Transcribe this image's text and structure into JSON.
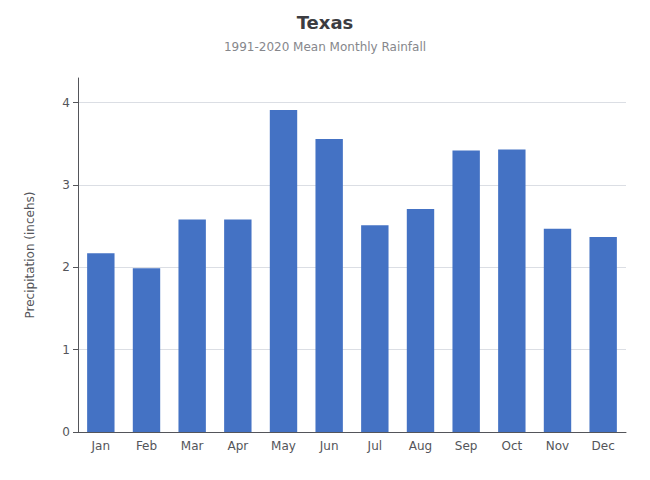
{
  "chart_data": {
    "type": "bar",
    "title": "Texas",
    "subtitle": "1991-2020 Mean Monthly Rainfall",
    "categories": [
      "Jan",
      "Feb",
      "Mar",
      "Apr",
      "May",
      "Jun",
      "Jul",
      "Aug",
      "Sep",
      "Oct",
      "Nov",
      "Dec"
    ],
    "values": [
      2.17,
      1.99,
      2.58,
      2.58,
      3.91,
      3.56,
      2.51,
      2.71,
      3.42,
      3.43,
      2.47,
      2.37
    ],
    "color": "#4472C4",
    "ylabel": "Precipitation (incehs)",
    "ylim": [
      0,
      4.3
    ],
    "yticks": [
      0,
      1,
      2,
      3,
      4
    ],
    "grid": true
  }
}
